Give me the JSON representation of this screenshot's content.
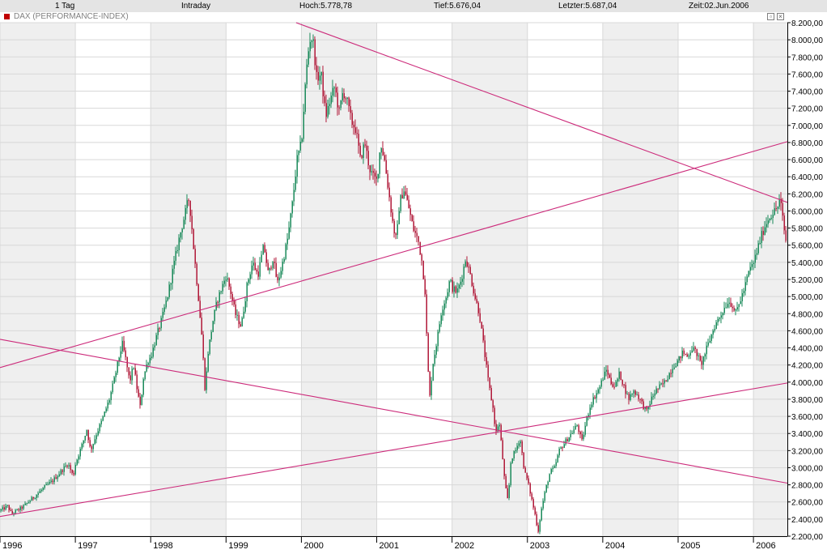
{
  "header": {
    "period": "1 Tag",
    "mode": "Intraday",
    "high": "Hoch:5.778,78",
    "low": "Tief:5.676,04",
    "last": "Letzter:5.687,04",
    "time": "Zeit:02.Jun.2006"
  },
  "window_title": "DAX (PERFORMANCE-INDEX)",
  "colors": {
    "up_candle": "#1a8a5a",
    "down_candle": "#b01838",
    "trendline": "#cc2a7a",
    "band": "#efefef",
    "grid": "#d8d8d8"
  },
  "icons": [
    "restore-icon",
    "close-icon"
  ],
  "chart_data": {
    "type": "line",
    "title": "DAX (PERFORMANCE-INDEX)",
    "style": "candlestick",
    "x_range": [
      1996.0,
      2006.45
    ],
    "ylim": [
      2200,
      8200
    ],
    "y_ticks": [
      "2.200,00",
      "2.400,00",
      "2.600,00",
      "2.800,00",
      "3.000,00",
      "3.200,00",
      "3.400,00",
      "3.600,00",
      "3.800,00",
      "4.000,00",
      "4.200,00",
      "4.400,00",
      "4.600,00",
      "4.800,00",
      "5.000,00",
      "5.200,00",
      "5.400,00",
      "5.600,00",
      "5.800,00",
      "6.000,00",
      "6.200,00",
      "6.400,00",
      "6.600,00",
      "6.800,00",
      "7.000,00",
      "7.200,00",
      "7.400,00",
      "7.600,00",
      "7.800,00",
      "8.000,00",
      "8.200,00"
    ],
    "x_ticks": [
      "1996",
      "1997",
      "1998",
      "1999",
      "2000",
      "2001",
      "2002",
      "2003",
      "2004",
      "2005",
      "2006"
    ],
    "grid": true,
    "series": [
      {
        "points": [
          [
            1996.0,
            2500
          ],
          [
            1996.1,
            2550
          ],
          [
            1996.15,
            2460
          ],
          [
            1996.3,
            2540
          ],
          [
            1996.4,
            2620
          ],
          [
            1996.5,
            2700
          ],
          [
            1996.6,
            2780
          ],
          [
            1996.7,
            2850
          ],
          [
            1996.8,
            2950
          ],
          [
            1996.9,
            3050
          ],
          [
            1996.97,
            2900
          ],
          [
            1997.0,
            3050
          ],
          [
            1997.1,
            3300
          ],
          [
            1997.15,
            3450
          ],
          [
            1997.2,
            3200
          ],
          [
            1997.28,
            3400
          ],
          [
            1997.35,
            3550
          ],
          [
            1997.45,
            3800
          ],
          [
            1997.52,
            4050
          ],
          [
            1997.58,
            4300
          ],
          [
            1997.62,
            4450
          ],
          [
            1997.67,
            4250
          ],
          [
            1997.72,
            4000
          ],
          [
            1997.77,
            4200
          ],
          [
            1997.82,
            3900
          ],
          [
            1997.86,
            3700
          ],
          [
            1997.9,
            4050
          ],
          [
            1997.96,
            4250
          ],
          [
            1998.0,
            4300
          ],
          [
            1998.08,
            4550
          ],
          [
            1998.15,
            4750
          ],
          [
            1998.22,
            5000
          ],
          [
            1998.3,
            5350
          ],
          [
            1998.38,
            5700
          ],
          [
            1998.45,
            5950
          ],
          [
            1998.5,
            6150
          ],
          [
            1998.53,
            5950
          ],
          [
            1998.58,
            5450
          ],
          [
            1998.63,
            5000
          ],
          [
            1998.68,
            4500
          ],
          [
            1998.72,
            3900
          ],
          [
            1998.76,
            4350
          ],
          [
            1998.82,
            4700
          ],
          [
            1998.88,
            4950
          ],
          [
            1998.94,
            5100
          ],
          [
            1999.0,
            5250
          ],
          [
            1999.06,
            5050
          ],
          [
            1999.12,
            4800
          ],
          [
            1999.2,
            4650
          ],
          [
            1999.28,
            5150
          ],
          [
            1999.35,
            5400
          ],
          [
            1999.42,
            5250
          ],
          [
            1999.5,
            5600
          ],
          [
            1999.56,
            5250
          ],
          [
            1999.62,
            5450
          ],
          [
            1999.68,
            5150
          ],
          [
            1999.75,
            5400
          ],
          [
            1999.82,
            5700
          ],
          [
            1999.88,
            6100
          ],
          [
            1999.94,
            6600
          ],
          [
            2000.0,
            6800
          ],
          [
            2000.04,
            7350
          ],
          [
            2000.08,
            7800
          ],
          [
            2000.12,
            8050
          ],
          [
            2000.16,
            7950
          ],
          [
            2000.2,
            7550
          ],
          [
            2000.26,
            7600
          ],
          [
            2000.32,
            7100
          ],
          [
            2000.38,
            7300
          ],
          [
            2000.44,
            7450
          ],
          [
            2000.5,
            7150
          ],
          [
            2000.55,
            7400
          ],
          [
            2000.6,
            7300
          ],
          [
            2000.66,
            7050
          ],
          [
            2000.72,
            6950
          ],
          [
            2000.78,
            6600
          ],
          [
            2000.84,
            6800
          ],
          [
            2000.9,
            6500
          ],
          [
            2000.95,
            6400
          ],
          [
            2001.0,
            6350
          ],
          [
            2001.05,
            6800
          ],
          [
            2001.1,
            6600
          ],
          [
            2001.16,
            6200
          ],
          [
            2001.22,
            5800
          ],
          [
            2001.26,
            5650
          ],
          [
            2001.3,
            6100
          ],
          [
            2001.36,
            6250
          ],
          [
            2001.42,
            6050
          ],
          [
            2001.48,
            5800
          ],
          [
            2001.55,
            5650
          ],
          [
            2001.6,
            5400
          ],
          [
            2001.64,
            5050
          ],
          [
            2001.67,
            4300
          ],
          [
            2001.7,
            3800
          ],
          [
            2001.74,
            4200
          ],
          [
            2001.8,
            4500
          ],
          [
            2001.86,
            4850
          ],
          [
            2001.92,
            5000
          ],
          [
            2001.97,
            5200
          ],
          [
            2002.0,
            5100
          ],
          [
            2002.06,
            5050
          ],
          [
            2002.12,
            5200
          ],
          [
            2002.18,
            5450
          ],
          [
            2002.24,
            5250
          ],
          [
            2002.3,
            5000
          ],
          [
            2002.36,
            4800
          ],
          [
            2002.42,
            4400
          ],
          [
            2002.48,
            4000
          ],
          [
            2002.54,
            3700
          ],
          [
            2002.58,
            3400
          ],
          [
            2002.62,
            3550
          ],
          [
            2002.66,
            3200
          ],
          [
            2002.7,
            2800
          ],
          [
            2002.74,
            2600
          ],
          [
            2002.78,
            3100
          ],
          [
            2002.84,
            3200
          ],
          [
            2002.9,
            3350
          ],
          [
            2002.96,
            2950
          ],
          [
            2003.0,
            2850
          ],
          [
            2003.05,
            2650
          ],
          [
            2003.1,
            2450
          ],
          [
            2003.14,
            2250
          ],
          [
            2003.18,
            2500
          ],
          [
            2003.24,
            2750
          ],
          [
            2003.3,
            2950
          ],
          [
            2003.36,
            3000
          ],
          [
            2003.42,
            3200
          ],
          [
            2003.5,
            3300
          ],
          [
            2003.58,
            3400
          ],
          [
            2003.66,
            3500
          ],
          [
            2003.72,
            3300
          ],
          [
            2003.78,
            3550
          ],
          [
            2003.84,
            3750
          ],
          [
            2003.9,
            3850
          ],
          [
            2003.96,
            3950
          ],
          [
            2004.0,
            4050
          ],
          [
            2004.05,
            4150
          ],
          [
            2004.1,
            4000
          ],
          [
            2004.16,
            3950
          ],
          [
            2004.22,
            4100
          ],
          [
            2004.28,
            3950
          ],
          [
            2004.34,
            3800
          ],
          [
            2004.4,
            3900
          ],
          [
            2004.46,
            3850
          ],
          [
            2004.52,
            3750
          ],
          [
            2004.58,
            3650
          ],
          [
            2004.64,
            3800
          ],
          [
            2004.7,
            3900
          ],
          [
            2004.76,
            3950
          ],
          [
            2004.82,
            4000
          ],
          [
            2004.88,
            4100
          ],
          [
            2004.94,
            4200
          ],
          [
            2005.0,
            4250
          ],
          [
            2005.06,
            4350
          ],
          [
            2005.12,
            4300
          ],
          [
            2005.18,
            4400
          ],
          [
            2005.24,
            4350
          ],
          [
            2005.3,
            4200
          ],
          [
            2005.36,
            4350
          ],
          [
            2005.42,
            4500
          ],
          [
            2005.48,
            4650
          ],
          [
            2005.54,
            4750
          ],
          [
            2005.6,
            4850
          ],
          [
            2005.66,
            4950
          ],
          [
            2005.72,
            4900
          ],
          [
            2005.76,
            4800
          ],
          [
            2005.82,
            4950
          ],
          [
            2005.88,
            5100
          ],
          [
            2005.94,
            5300
          ],
          [
            2006.0,
            5400
          ],
          [
            2006.05,
            5550
          ],
          [
            2006.1,
            5700
          ],
          [
            2006.16,
            5850
          ],
          [
            2006.22,
            5950
          ],
          [
            2006.28,
            6000
          ],
          [
            2006.32,
            6050
          ],
          [
            2006.35,
            6150
          ],
          [
            2006.38,
            5950
          ],
          [
            2006.41,
            5750
          ],
          [
            2006.43,
            5650
          ],
          [
            2006.44,
            5700
          ]
        ]
      }
    ],
    "trendlines": [
      {
        "start": [
          1996.0,
          2430
        ],
        "end": [
          2006.45,
          3990
        ]
      },
      {
        "start": [
          1996.0,
          4170
        ],
        "end": [
          2006.45,
          6810
        ]
      },
      {
        "start": [
          1996.0,
          4500
        ],
        "end": [
          2006.45,
          2820
        ]
      },
      {
        "start": [
          1999.93,
          8200
        ],
        "end": [
          2006.45,
          6100
        ]
      }
    ]
  }
}
